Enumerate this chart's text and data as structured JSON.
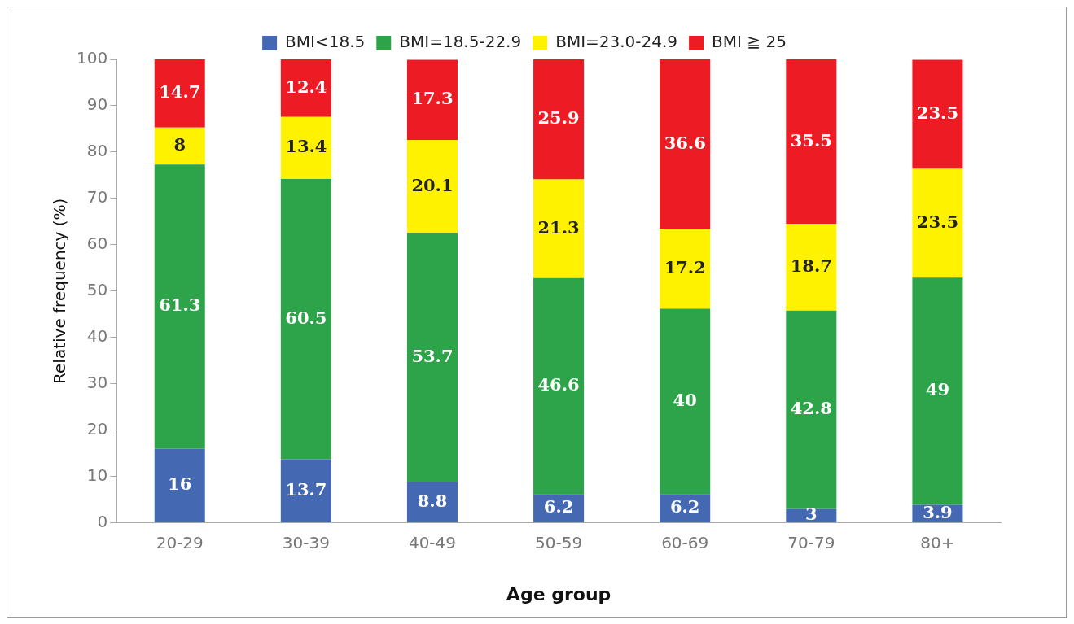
{
  "chart_data": {
    "type": "bar",
    "stacked": true,
    "xlabel": "Age group",
    "ylabel": "Relative frequency (%)",
    "categories": [
      "20-29",
      "30-39",
      "40-49",
      "50-59",
      "60-69",
      "70-79",
      "80+"
    ],
    "series": [
      {
        "name": "BMI<18.5",
        "color": "#4468b2",
        "values": [
          16,
          13.7,
          8.8,
          6.2,
          6.2,
          3,
          3.9
        ]
      },
      {
        "name": "BMI=18.5-22.9",
        "color": "#2da449",
        "values": [
          61.3,
          60.5,
          53.7,
          46.6,
          40,
          42.8,
          49
        ]
      },
      {
        "name": "BMI=23.0-24.9",
        "color": "#fff200",
        "values": [
          8,
          13.4,
          20.1,
          21.3,
          17.2,
          18.7,
          23.5
        ]
      },
      {
        "name": "BMI ≧ 25",
        "color": "#ed1c24",
        "values": [
          14.7,
          12.4,
          17.3,
          25.9,
          36.6,
          35.5,
          23.5
        ]
      }
    ],
    "ylim": [
      0,
      100
    ],
    "yticks": [
      0,
      10,
      20,
      30,
      40,
      50,
      60,
      70,
      80,
      90,
      100
    ],
    "grid": false,
    "legend": "top",
    "data_labels": true
  }
}
